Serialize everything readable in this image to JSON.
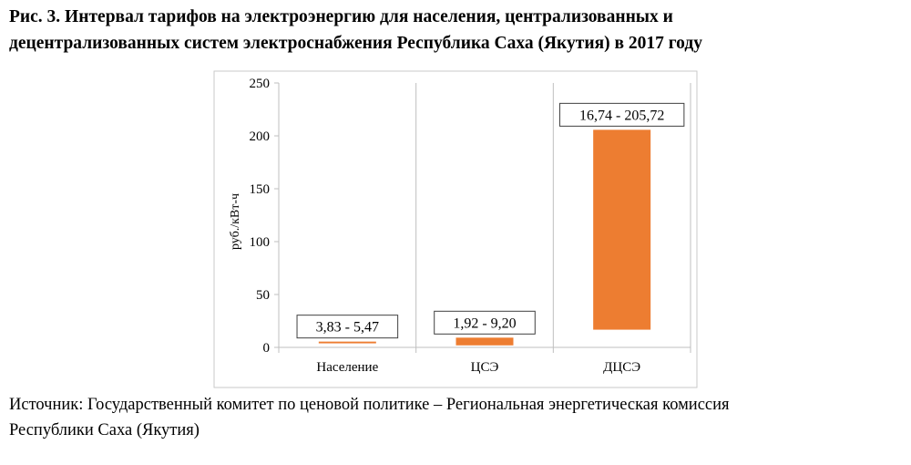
{
  "caption": {
    "line1": "Рис. 3. Интервал тарифов на электроэнергию для населения, централизованных и",
    "line2": "децентрализованных систем электроснабжения Республика Саха (Якутия) в 2017 году"
  },
  "source": {
    "line1": "Источник: Государственный комитет по ценовой политике – Региональная энергетическая комиссия",
    "line2": "Республики Саха (Якутия)"
  },
  "chart_data": {
    "type": "bar",
    "categories": [
      "Население",
      "ЦСЭ",
      "ДЦСЭ"
    ],
    "ranges": [
      [
        3.83,
        5.47
      ],
      [
        1.92,
        9.2
      ],
      [
        16.74,
        205.72
      ]
    ],
    "data_labels": [
      "3,83 - 5,47",
      "1,92 - 9,20",
      "16,74 - 205,72"
    ],
    "ylabel": "руб./кВт-ч",
    "ylim": [
      0,
      250
    ],
    "yticks": [
      0,
      50,
      100,
      150,
      200,
      250
    ],
    "grid": "vertical category separators",
    "bar_color": "#ed7d31"
  }
}
